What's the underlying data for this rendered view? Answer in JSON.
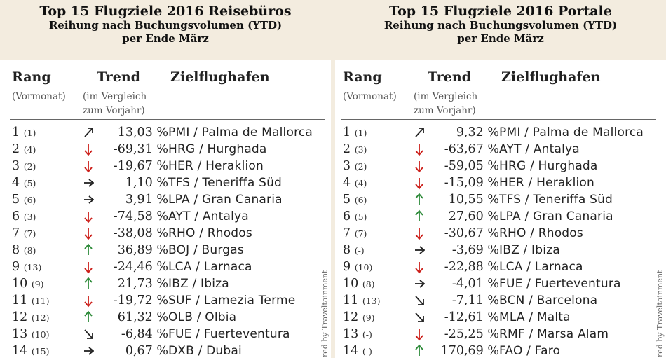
{
  "chart_data": [
    {
      "type": "table",
      "title": "Top 15 Flugziele 2016 Reisebüros",
      "subtitle_lines": [
        "Reihung nach Buchungsvolumen (YTD)",
        "per Ende März"
      ],
      "columns": {
        "rank": "Rang",
        "rank_note": "(Vormonat)",
        "trend": "Trend",
        "trend_note_1": "(im Vergleich",
        "trend_note_2": "zum Vorjahr)",
        "dest": "Zielflughafen"
      },
      "rows": [
        {
          "rank": "1",
          "prev": "(1)",
          "trend": "up-slight",
          "pct": "13,03 %",
          "value": 13.03,
          "dest": "PMI / Palma de Mallorca"
        },
        {
          "rank": "2",
          "prev": "(4)",
          "trend": "down",
          "pct": "-69,31 %",
          "value": -69.31,
          "dest": "HRG / Hurghada"
        },
        {
          "rank": "3",
          "prev": "(2)",
          "trend": "down",
          "pct": "-19,67 %",
          "value": -19.67,
          "dest": "HER / Heraklion"
        },
        {
          "rank": "4",
          "prev": "(5)",
          "trend": "flat",
          "pct": "1,10 %",
          "value": 1.1,
          "dest": "TFS / Teneriffa Süd"
        },
        {
          "rank": "5",
          "prev": "(6)",
          "trend": "flat",
          "pct": "3,91 %",
          "value": 3.91,
          "dest": "LPA / Gran Canaria"
        },
        {
          "rank": "6",
          "prev": "(3)",
          "trend": "down",
          "pct": "-74,58 %",
          "value": -74.58,
          "dest": "AYT / Antalya"
        },
        {
          "rank": "7",
          "prev": "(7)",
          "trend": "down",
          "pct": "-38,08 %",
          "value": -38.08,
          "dest": "RHO / Rhodos"
        },
        {
          "rank": "8",
          "prev": "(8)",
          "trend": "up",
          "pct": "36,89 %",
          "value": 36.89,
          "dest": "BOJ / Burgas"
        },
        {
          "rank": "9",
          "prev": "(13)",
          "trend": "down",
          "pct": "-24,46 %",
          "value": -24.46,
          "dest": "LCA / Larnaca"
        },
        {
          "rank": "10",
          "prev": "(9)",
          "trend": "up",
          "pct": "21,73 %",
          "value": 21.73,
          "dest": "IBZ / Ibiza"
        },
        {
          "rank": "11",
          "prev": "(11)",
          "trend": "down",
          "pct": "-19,72 %",
          "value": -19.72,
          "dest": "SUF / Lamezia Terme"
        },
        {
          "rank": "12",
          "prev": "(12)",
          "trend": "up",
          "pct": "61,32 %",
          "value": 61.32,
          "dest": "OLB / Olbia"
        },
        {
          "rank": "13",
          "prev": "(10)",
          "trend": "down-slight",
          "pct": "-6,84 %",
          "value": -6.84,
          "dest": "FUE / Fuerteventura"
        },
        {
          "rank": "14",
          "prev": "(15)",
          "trend": "flat",
          "pct": "0,67 %",
          "value": 0.67,
          "dest": "DXB / Dubai"
        }
      ],
      "credit": "red by Traveltainment"
    },
    {
      "type": "table",
      "title": "Top 15 Flugziele 2016 Portale",
      "subtitle_lines": [
        "Reihung nach Buchungsvolumen (YTD)",
        "per Ende März"
      ],
      "columns": {
        "rank": "Rang",
        "rank_note": "(Vormonat)",
        "trend": "Trend",
        "trend_note_1": "(im Vergleich",
        "trend_note_2": "zum Vorjahr)",
        "dest": "Zielflughafen"
      },
      "rows": [
        {
          "rank": "1",
          "prev": "(1)",
          "trend": "up-slight",
          "pct": "9,32 %",
          "value": 9.32,
          "dest": "PMI / Palma de Mallorca"
        },
        {
          "rank": "2",
          "prev": "(3)",
          "trend": "down",
          "pct": "-63,67 %",
          "value": -63.67,
          "dest": "AYT / Antalya"
        },
        {
          "rank": "3",
          "prev": "(2)",
          "trend": "down",
          "pct": "-59,05 %",
          "value": -59.05,
          "dest": "HRG / Hurghada"
        },
        {
          "rank": "4",
          "prev": "(4)",
          "trend": "down",
          "pct": "-15,09 %",
          "value": -15.09,
          "dest": "HER / Heraklion"
        },
        {
          "rank": "5",
          "prev": "(6)",
          "trend": "up",
          "pct": "10,55 %",
          "value": 10.55,
          "dest": "TFS / Teneriffa Süd"
        },
        {
          "rank": "6",
          "prev": "(5)",
          "trend": "up",
          "pct": "27,60 %",
          "value": 27.6,
          "dest": "LPA / Gran Canaria"
        },
        {
          "rank": "7",
          "prev": "(7)",
          "trend": "down",
          "pct": "-30,67 %",
          "value": -30.67,
          "dest": "RHO / Rhodos"
        },
        {
          "rank": "8",
          "prev": "(-)",
          "trend": "flat",
          "pct": "-3,69 %",
          "value": -3.69,
          "dest": "IBZ / Ibiza"
        },
        {
          "rank": "9",
          "prev": "(10)",
          "trend": "down",
          "pct": "-22,88 %",
          "value": -22.88,
          "dest": "LCA / Larnaca"
        },
        {
          "rank": "10",
          "prev": "(8)",
          "trend": "flat",
          "pct": "-4,01 %",
          "value": -4.01,
          "dest": "FUE / Fuerteventura"
        },
        {
          "rank": "11",
          "prev": "(13)",
          "trend": "down-slight",
          "pct": "-7,11 %",
          "value": -7.11,
          "dest": "BCN / Barcelona"
        },
        {
          "rank": "12",
          "prev": "(9)",
          "trend": "down-slight",
          "pct": "-12,61 %",
          "value": -12.61,
          "dest": "MLA / Malta"
        },
        {
          "rank": "13",
          "prev": "(-)",
          "trend": "down",
          "pct": "-25,25 %",
          "value": -25.25,
          "dest": "RMF / Marsa Alam"
        },
        {
          "rank": "14",
          "prev": "(-)",
          "trend": "up",
          "pct": "170,69 %",
          "value": 170.69,
          "dest": "FAO / Faro"
        }
      ],
      "credit": "red by Traveltainment"
    }
  ],
  "colors": {
    "up": "#2e8b3a",
    "down": "#cc1f1a",
    "neutral": "#222222",
    "header_bg": "#f3ecdf"
  },
  "icons": {
    "up": "arrow-up-icon",
    "down": "arrow-down-icon",
    "flat": "arrow-right-icon",
    "up-slight": "arrow-up-right-icon",
    "down-slight": "arrow-down-right-icon"
  }
}
